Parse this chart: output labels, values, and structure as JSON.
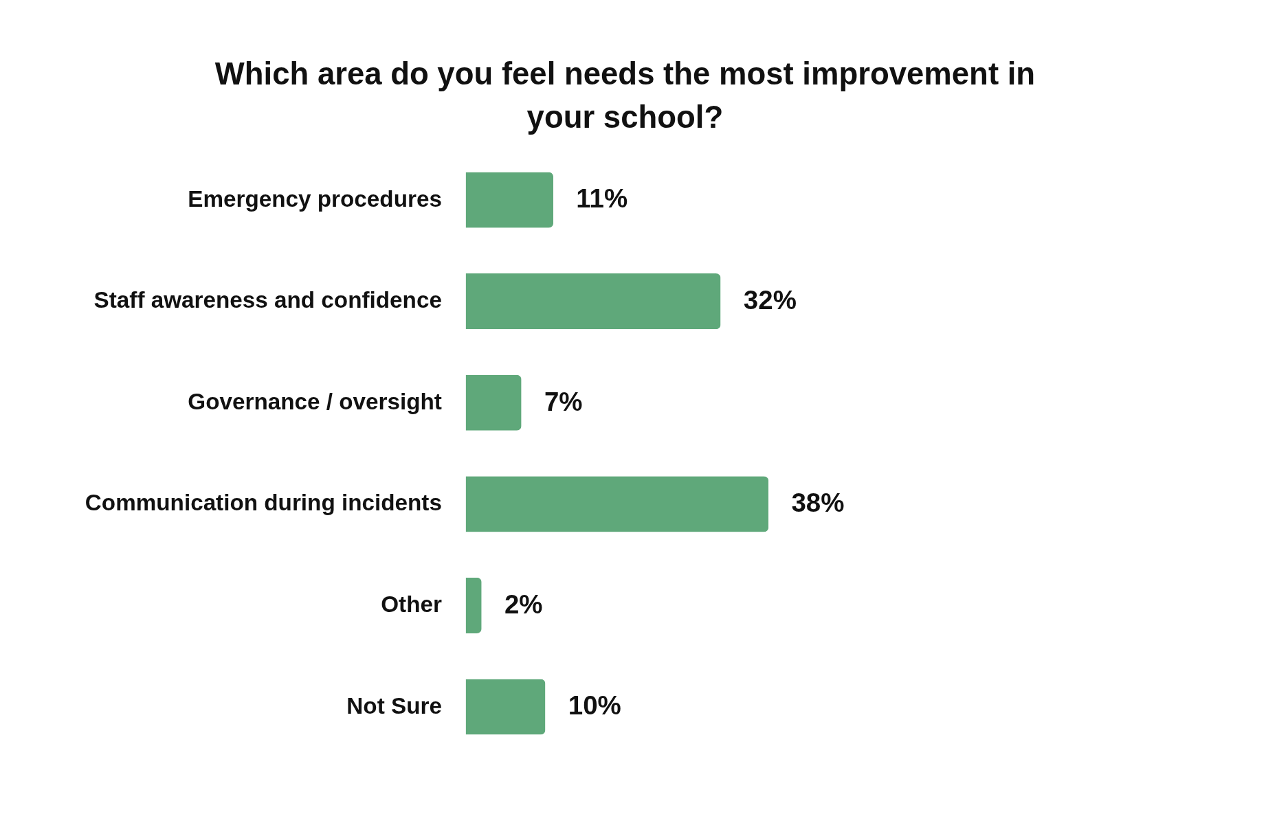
{
  "chart_data": {
    "type": "bar",
    "orientation": "horizontal",
    "title": "Which area do you feel needs the most improvement in your school?",
    "categories": [
      "Emergency procedures",
      "Staff awareness and confidence",
      "Governance / oversight",
      "Communication during incidents",
      "Other",
      "Not Sure"
    ],
    "values": [
      11,
      32,
      7,
      38,
      2,
      10
    ],
    "value_labels": [
      "11%",
      "32%",
      "7%",
      "38%",
      "2%",
      "10%"
    ],
    "color": "#5fa87a"
  }
}
